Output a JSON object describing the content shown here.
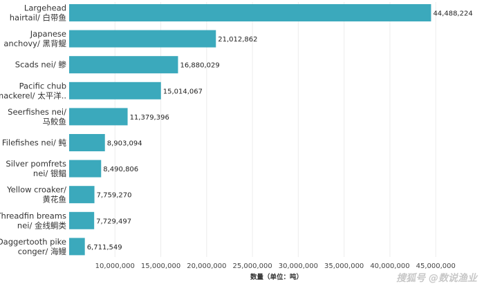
{
  "chart_data": {
    "type": "bar",
    "orientation": "horizontal",
    "categories": [
      [
        "Largehead",
        "hairtail/ 白带鱼"
      ],
      [
        "Japanese",
        "anchovy/ 黑背鳀"
      ],
      [
        "Scads nei/ 鲹"
      ],
      [
        "Pacific chub",
        "mackerel/ 太平洋.."
      ],
      [
        "Seerfishes nei/",
        "马鲛鱼"
      ],
      [
        "Filefishes nei/ 鲀"
      ],
      [
        "Silver pomfrets",
        "nei/ 银鲳"
      ],
      [
        "Yellow croaker/",
        "黄花鱼"
      ],
      [
        "Threadfin breams",
        "nei/ 金线鲷类"
      ],
      [
        "Daggertooth pike",
        "conger/ 海鳗"
      ]
    ],
    "values": [
      44488224,
      21012862,
      16880029,
      15014067,
      11379396,
      8903094,
      8490806,
      7759270,
      7729497,
      6711549
    ],
    "value_labels": [
      "44,488,224",
      "21,012,862",
      "16,880,029",
      "15,014,067",
      "11,379,396",
      "8,903,094",
      "8,490,806",
      "7,759,270",
      "7,729,497",
      "6,711,549"
    ],
    "xlabel": "数量（单位：吨）",
    "xlim": [
      5000000,
      48000000
    ],
    "xticks": [
      10000000,
      15000000,
      20000000,
      25000000,
      30000000,
      35000000,
      40000000,
      45000000
    ],
    "xtick_labels": [
      "10,000,000",
      "15,000,000",
      "20,000,000",
      "25,000,000",
      "30,000,000",
      "35,000,000",
      "40,000,000",
      "45,000,000"
    ],
    "grid": true,
    "bar_color": "#3ba9bc"
  },
  "watermark": "搜狐号 @数说渔业"
}
